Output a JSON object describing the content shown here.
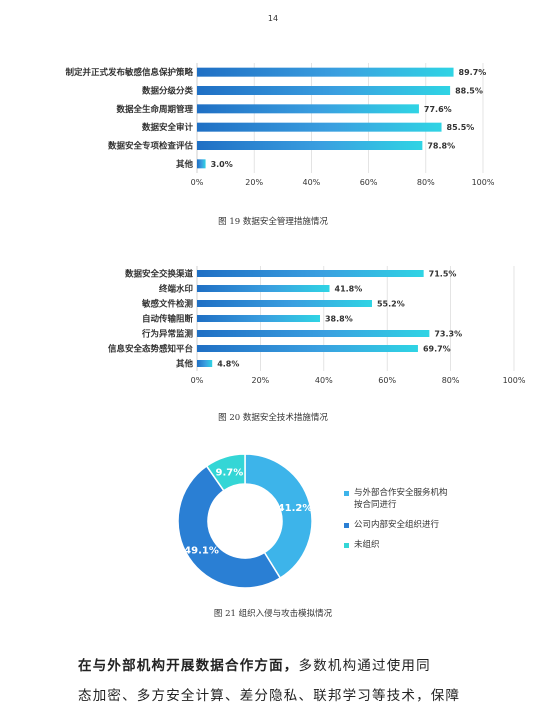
{
  "page_number": "14",
  "colors": {
    "blue_dark": "#1f6fc4",
    "blue_mid": "#3a9fe0",
    "cyan": "#2fd4e4",
    "blue_pie": "#2c8ce0",
    "blue_pie_dark": "#2a74c8"
  },
  "chart_data": [
    {
      "type": "bar",
      "orientation": "horizontal",
      "categories": [
        "制定并正式发布敏感信息保护策略",
        "数据分级分类",
        "数据全生命周期管理",
        "数据安全审计",
        "数据安全专项检查评估",
        "其他"
      ],
      "values": [
        89.7,
        88.5,
        77.6,
        85.5,
        78.8,
        3.0
      ],
      "value_labels": [
        "89.7%",
        "88.5%",
        "77.6%",
        "85.5%",
        "78.8%",
        "3.0%"
      ],
      "xticks": [
        "0%",
        "20%",
        "40%",
        "60%",
        "80%",
        "100%"
      ],
      "xlim": [
        0,
        100
      ],
      "grid": true
    },
    {
      "type": "bar",
      "orientation": "horizontal",
      "categories": [
        "数据安全交换渠道",
        "终端水印",
        "敏感文件检测",
        "自动传输阻断",
        "行为异常监测",
        "信息安全态势感知平台",
        "其他"
      ],
      "values": [
        71.5,
        41.8,
        55.2,
        38.8,
        73.3,
        69.7,
        4.8
      ],
      "value_labels": [
        "71.5%",
        "41.8%",
        "55.2%",
        "38.8%",
        "73.3%",
        "69.7%",
        "4.8%"
      ],
      "xticks": [
        "0%",
        "20%",
        "40%",
        "60%",
        "80%",
        "100%"
      ],
      "xlim": [
        0,
        100
      ],
      "grid": true
    },
    {
      "type": "pie",
      "donut": true,
      "labels": [
        "与外部合作安全服务机构\n按合同进行",
        "公司内部安全组织进行",
        "未组织"
      ],
      "values": [
        41.2,
        49.1,
        9.7
      ],
      "value_labels": [
        "41.2%",
        "49.1%",
        "9.7%"
      ],
      "colors": [
        "#3db4ea",
        "#2a7fd4",
        "#34d6d6"
      ],
      "legend": "right"
    }
  ],
  "captions": {
    "fig19": "图 19 数据安全管理措施情况",
    "fig20": "图 20 数据安全技术措施情况",
    "fig21": "图 21 组织入侵与攻击模拟情况"
  },
  "legend21": {
    "item1_line1": "与外部合作安全服务机构",
    "item1_line2": "按合同进行",
    "item2": "公司内部安全组织进行",
    "item3": "未组织"
  },
  "body": {
    "line1_bold": "在与外部机构开展数据合作方面，",
    "line1_rest": "多数机构通过使用同",
    "line2": "态加密、多方安全计算、差分隐私、联邦学习等技术，保障"
  }
}
